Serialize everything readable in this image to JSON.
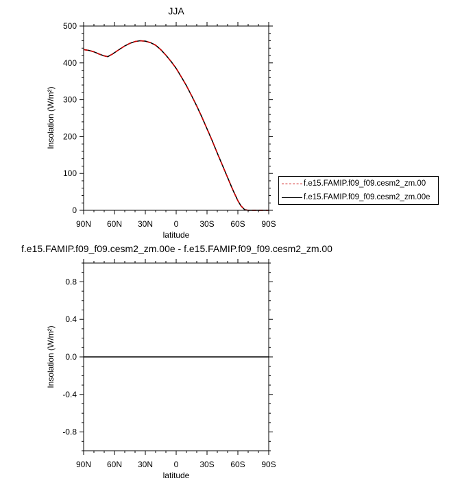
{
  "chart_data": [
    {
      "type": "line",
      "title": "JJA",
      "xlabel": "latitude",
      "ylabel": "Insolation (W/m²)",
      "x_tick_labels": [
        "90N",
        "60N",
        "30N",
        "0",
        "30S",
        "60S",
        "90S"
      ],
      "x_tick_values": [
        90,
        60,
        30,
        0,
        -30,
        -60,
        -90
      ],
      "xlim": [
        90,
        -90
      ],
      "ylim": [
        0,
        500
      ],
      "y_ticks": [
        0,
        100,
        200,
        300,
        400,
        500
      ],
      "legend_position": "right",
      "series": [
        {
          "name": "f.e15.FAMIP.f09_f09.cesm2_zm.00",
          "color": "#cc0000",
          "style": "dashed",
          "x": [
            90,
            85,
            80,
            75,
            70,
            66.5,
            62,
            55,
            50,
            45,
            40,
            35,
            30,
            25,
            20,
            15,
            10,
            5,
            0,
            -5,
            -10,
            -15,
            -20,
            -25,
            -30,
            -35,
            -40,
            -45,
            -50,
            -55,
            -60,
            -63,
            -66.5,
            -70,
            -75,
            -80,
            -85,
            -90
          ],
          "values": [
            436,
            434,
            430,
            424,
            419,
            417,
            424,
            437,
            446,
            453,
            458,
            460,
            459,
            455,
            448,
            436,
            421,
            404,
            385,
            362,
            338,
            311,
            283,
            253,
            221,
            189,
            155,
            122,
            89,
            56,
            26,
            12,
            2,
            0,
            0,
            0,
            0,
            0
          ]
        },
        {
          "name": "f.e15.FAMIP.f09_f09.cesm2_zm.00e",
          "color": "#000000",
          "style": "solid",
          "x": [
            90,
            85,
            80,
            75,
            70,
            66.5,
            62,
            55,
            50,
            45,
            40,
            35,
            30,
            25,
            20,
            15,
            10,
            5,
            0,
            -5,
            -10,
            -15,
            -20,
            -25,
            -30,
            -35,
            -40,
            -45,
            -50,
            -55,
            -60,
            -63,
            -66.5,
            -70,
            -75,
            -80,
            -85,
            -90
          ],
          "values": [
            436,
            434,
            430,
            424,
            419,
            417,
            424,
            437,
            446,
            453,
            458,
            460,
            459,
            455,
            448,
            436,
            421,
            404,
            385,
            362,
            338,
            311,
            283,
            253,
            221,
            189,
            155,
            122,
            89,
            56,
            26,
            12,
            2,
            0,
            0,
            0,
            0,
            0
          ]
        }
      ]
    },
    {
      "type": "line",
      "title": "f.e15.FAMIP.f09_f09.cesm2_zm.00e - f.e15.FAMIP.f09_f09.cesm2_zm.00",
      "xlabel": "latitude",
      "ylabel": "Insolation (W/m²)",
      "x_tick_labels": [
        "90N",
        "60N",
        "30N",
        "0",
        "30S",
        "60S",
        "90S"
      ],
      "x_tick_values": [
        90,
        60,
        30,
        0,
        -30,
        -60,
        -90
      ],
      "xlim": [
        90,
        -90
      ],
      "ylim": [
        -1,
        1
      ],
      "y_ticks": [
        -0.8,
        -0.4,
        0.0,
        0.4,
        0.8
      ],
      "y_tick_labels": [
        "-0.8",
        "-0.4",
        "0.0",
        "0.4",
        "0.8"
      ],
      "series": [
        {
          "color": "#000000",
          "style": "solid",
          "x": [
            90,
            -90
          ],
          "values": [
            0,
            0
          ]
        }
      ]
    }
  ]
}
